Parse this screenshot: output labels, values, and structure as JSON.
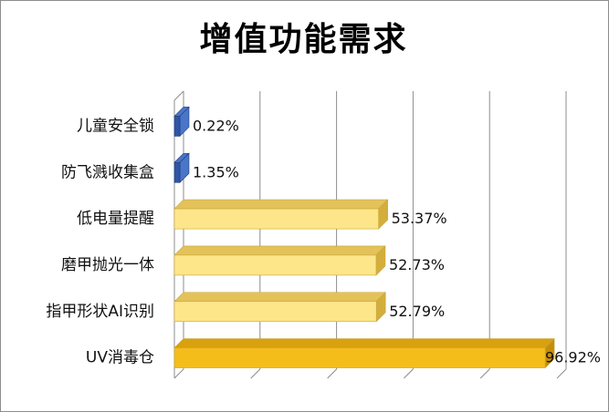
{
  "chart_data": {
    "type": "bar",
    "orientation": "horizontal",
    "title": "增值功能需求",
    "categories": [
      "儿童安全锁",
      "防飞溅收集盒",
      "低电量提醒",
      "磨甲抛光一体",
      "指甲形状AI识别",
      "UV消毒仓"
    ],
    "values": [
      0.22,
      1.35,
      53.37,
      52.73,
      52.79,
      96.92
    ],
    "value_labels": [
      "0.22%",
      "1.35%",
      "53.37%",
      "52.73%",
      "52.79%",
      "96.92%"
    ],
    "xlim": [
      0,
      100
    ],
    "grid": true,
    "legend": "none",
    "colors": {
      "small_bar_front": "#2f55a4",
      "small_bar_side": "#4a76c9",
      "bar_front": "#fde68a",
      "bar_edge": "#c9a53a",
      "bar_top": "#e3c25a",
      "bar_side": "#d4ae3d",
      "highlight_bar_front": "#f5bd1a",
      "highlight_bar_top": "#d9a10f",
      "highlight_bar_side": "#c48e0a",
      "gridline": "#8c8c8c"
    }
  }
}
